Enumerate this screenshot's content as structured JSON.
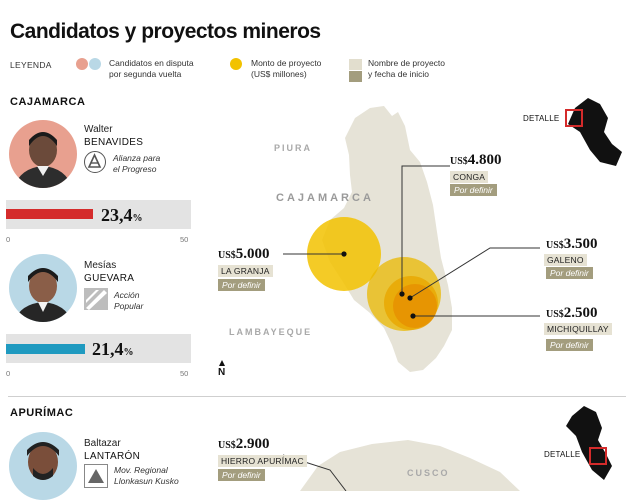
{
  "title": "Candidatos y proyectos mineros",
  "legend": {
    "label": "LEYENDA",
    "candidates": "Candidatos en disputa\npor segunda vuelta",
    "amount": "Monto de proyecto\n(US$ millones)",
    "project": "Nombre de proyecto\ny fecha de inicio",
    "colors": {
      "candidate_a": "#e8a08f",
      "candidate_b": "#b9d8e6",
      "amount": "#f2c200",
      "project_name": "#e2dece",
      "project_date": "#a39d7e"
    }
  },
  "regions": [
    {
      "name": "CAJAMARCA",
      "detail_label": "DETALLE",
      "candidates": [
        {
          "first_name": "Walter",
          "last_name": "BENAVIDES",
          "party": "Alianza para\nel Progreso",
          "percent": "23,4",
          "percent_sign": "%",
          "value": 23.4,
          "bar_color": "#d42b2b",
          "avatar_bg": "#e8a08f"
        },
        {
          "first_name": "Mesías",
          "last_name": "GUEVARA",
          "party": "Acción\nPopular",
          "percent": "21,4",
          "percent_sign": "%",
          "value": 21.4,
          "bar_color": "#1f9ac0",
          "avatar_bg": "#b9d8e6"
        }
      ],
      "axis": {
        "min": "0",
        "max": "50",
        "max_value": 50
      },
      "map_labels": {
        "north": "PIURA",
        "center": "CAJAMARCA",
        "south": "LAMBAYEQUE",
        "compass": "N"
      },
      "projects": [
        {
          "currency": "US$",
          "amount": "4.800",
          "name": "CONGA",
          "status": "Por definir"
        },
        {
          "currency": "US$",
          "amount": "5.000",
          "name": "LA GRANJA",
          "status": "Por definir"
        },
        {
          "currency": "US$",
          "amount": "3.500",
          "name": "GALENO",
          "status": "Por definir"
        },
        {
          "currency": "US$",
          "amount": "2.500",
          "name": "MICHIQUILLAY",
          "status": "Por definir"
        }
      ]
    },
    {
      "name": "APURÍMAC",
      "detail_label": "DETALLE",
      "candidates": [
        {
          "first_name": "Baltazar",
          "last_name": "LANTARÓN",
          "party": "Mov. Regional\nLlonkasun Kusko",
          "avatar_bg": "#b9d8e6"
        }
      ],
      "map_labels": {
        "east": "CUSCO"
      },
      "projects": [
        {
          "currency": "US$",
          "amount": "2.900",
          "name": "HIERRO APURÍMAC",
          "status": "Por definir"
        }
      ]
    }
  ]
}
